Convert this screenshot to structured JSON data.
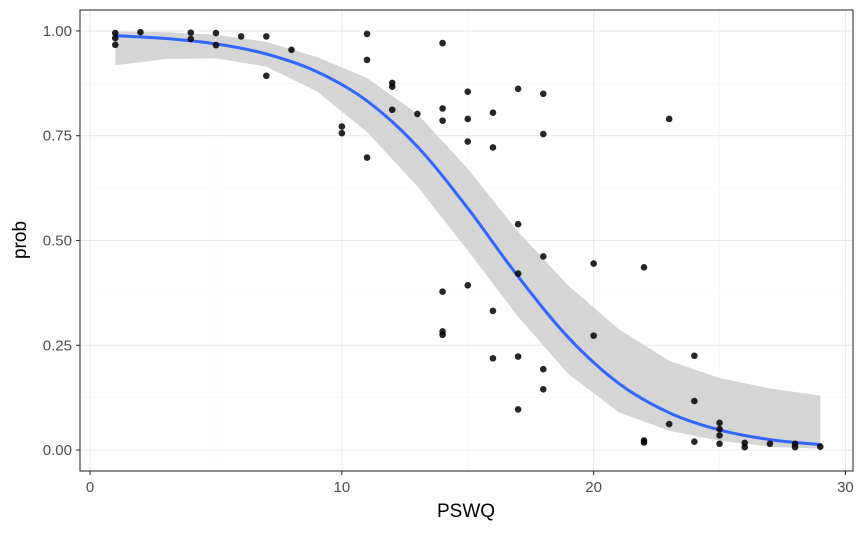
{
  "colors": {
    "points": "#000000",
    "line": "#3366ff",
    "ribbon": "#d3d3d3",
    "grid_major": "#ebebeb",
    "grid_minor": "#f5f5f5",
    "panel_border": "#333333"
  },
  "chart_data": {
    "type": "scatter",
    "xlabel": "PSWQ",
    "ylabel": "prob",
    "xlim": [
      -0.4,
      30.3
    ],
    "ylim": [
      -0.05,
      1.05
    ],
    "xticks": [
      0,
      10,
      20,
      30
    ],
    "xtick_labels": [
      "0",
      "10",
      "20",
      "30"
    ],
    "yticks": [
      0,
      0.25,
      0.5,
      0.75,
      1
    ],
    "ytick_labels": [
      "0.00",
      "0.25",
      "0.50",
      "0.75",
      "1.00"
    ],
    "grid": true,
    "legend": "none",
    "points": [
      [
        1,
        0.995
      ],
      [
        1,
        0.983
      ],
      [
        1,
        0.967
      ],
      [
        2,
        0.997
      ],
      [
        4,
        0.996
      ],
      [
        4,
        0.981
      ],
      [
        5,
        0.995
      ],
      [
        5,
        0.966
      ],
      [
        6,
        0.987
      ],
      [
        7,
        0.987
      ],
      [
        7,
        0.893
      ],
      [
        8,
        0.955
      ],
      [
        10,
        0.772
      ],
      [
        10,
        0.756
      ],
      [
        11,
        0.993
      ],
      [
        11,
        0.931
      ],
      [
        11,
        0.698
      ],
      [
        12,
        0.876
      ],
      [
        12,
        0.867
      ],
      [
        12,
        0.812
      ],
      [
        13,
        0.802
      ],
      [
        14,
        0.971
      ],
      [
        14,
        0.815
      ],
      [
        14,
        0.786
      ],
      [
        14,
        0.378
      ],
      [
        14,
        0.283
      ],
      [
        14,
        0.275
      ],
      [
        15,
        0.855
      ],
      [
        15,
        0.79
      ],
      [
        15,
        0.736
      ],
      [
        15,
        0.393
      ],
      [
        16,
        0.805
      ],
      [
        16,
        0.722
      ],
      [
        16,
        0.332
      ],
      [
        16,
        0.219
      ],
      [
        17,
        0.862
      ],
      [
        17,
        0.539
      ],
      [
        17,
        0.421
      ],
      [
        17,
        0.223
      ],
      [
        17,
        0.097
      ],
      [
        18,
        0.85
      ],
      [
        18,
        0.754
      ],
      [
        18,
        0.462
      ],
      [
        18,
        0.193
      ],
      [
        18,
        0.145
      ],
      [
        20,
        0.445
      ],
      [
        20,
        0.273
      ],
      [
        22,
        0.436
      ],
      [
        22,
        0.023
      ],
      [
        22,
        0.018
      ],
      [
        23,
        0.79
      ],
      [
        23,
        0.062
      ],
      [
        24,
        0.225
      ],
      [
        24,
        0.117
      ],
      [
        24,
        0.02
      ],
      [
        25,
        0.065
      ],
      [
        25,
        0.05
      ],
      [
        25,
        0.035
      ],
      [
        25,
        0.015
      ],
      [
        26,
        0.017
      ],
      [
        26,
        0.007
      ],
      [
        27,
        0.015
      ],
      [
        28,
        0.015
      ],
      [
        28,
        0.007
      ],
      [
        29,
        0.008
      ]
    ],
    "smooth": {
      "x": [
        1,
        3,
        5,
        7,
        9,
        11,
        13,
        15,
        17,
        19,
        21,
        23,
        25,
        27,
        29
      ],
      "y": [
        0.989,
        0.982,
        0.969,
        0.945,
        0.903,
        0.833,
        0.724,
        0.577,
        0.414,
        0.268,
        0.159,
        0.089,
        0.048,
        0.025,
        0.013
      ],
      "lower": [
        0.918,
        0.933,
        0.935,
        0.915,
        0.856,
        0.759,
        0.629,
        0.476,
        0.318,
        0.181,
        0.09,
        0.046,
        0.022,
        0.008,
        0.003
      ],
      "upper": [
        0.999,
        0.997,
        0.991,
        0.974,
        0.938,
        0.888,
        0.802,
        0.671,
        0.521,
        0.392,
        0.288,
        0.213,
        0.172,
        0.147,
        0.13
      ]
    }
  }
}
